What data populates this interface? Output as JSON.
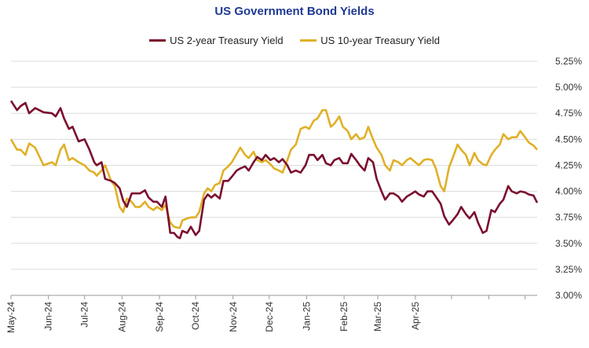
{
  "chart_data": {
    "type": "line",
    "title": "US Government Bond Yields",
    "xlabel": "",
    "ylabel": "",
    "x_ticks": [
      "May-24",
      "Jun-24",
      "Jul-24",
      "Aug-24",
      "Sep-24",
      "Oct-24",
      "Nov-24",
      "Dec-24",
      "Jan-25",
      "Feb-25",
      "Mar-25",
      "Apr-25"
    ],
    "ylim": [
      3.0,
      5.25
    ],
    "y_ticks": [
      3.0,
      3.25,
      3.5,
      3.75,
      4.0,
      4.25,
      4.5,
      4.75,
      5.0,
      5.25
    ],
    "y_tick_labels": [
      "3.00%",
      "3.25%",
      "3.50%",
      "3.75%",
      "4.00%",
      "4.25%",
      "4.50%",
      "4.75%",
      "5.00%",
      "5.25%"
    ],
    "grid": true,
    "legend_position": "top",
    "series": [
      {
        "name": "US 2-year Treasury Yield",
        "color": "#7a0f2e",
        "points": [
          [
            "2024-05-01",
            4.87
          ],
          [
            "2024-05-06",
            4.78
          ],
          [
            "2024-05-09",
            4.82
          ],
          [
            "2024-05-13",
            4.85
          ],
          [
            "2024-05-16",
            4.75
          ],
          [
            "2024-05-21",
            4.8
          ],
          [
            "2024-05-28",
            4.76
          ],
          [
            "2024-06-04",
            4.75
          ],
          [
            "2024-06-07",
            4.72
          ],
          [
            "2024-06-11",
            4.8
          ],
          [
            "2024-06-14",
            4.7
          ],
          [
            "2024-06-18",
            4.6
          ],
          [
            "2024-06-21",
            4.62
          ],
          [
            "2024-06-26",
            4.48
          ],
          [
            "2024-07-01",
            4.5
          ],
          [
            "2024-07-05",
            4.4
          ],
          [
            "2024-07-09",
            4.28
          ],
          [
            "2024-07-11",
            4.25
          ],
          [
            "2024-07-15",
            4.28
          ],
          [
            "2024-07-18",
            4.12
          ],
          [
            "2024-07-23",
            4.1
          ],
          [
            "2024-07-26",
            4.08
          ],
          [
            "2024-07-30",
            4.03
          ],
          [
            "2024-08-02",
            3.91
          ],
          [
            "2024-08-05",
            3.85
          ],
          [
            "2024-08-09",
            3.98
          ],
          [
            "2024-08-12",
            3.98
          ],
          [
            "2024-08-16",
            3.98
          ],
          [
            "2024-08-20",
            4.01
          ],
          [
            "2024-08-23",
            3.94
          ],
          [
            "2024-08-27",
            3.9
          ],
          [
            "2024-08-30",
            3.9
          ],
          [
            "2024-09-03",
            3.85
          ],
          [
            "2024-09-06",
            3.95
          ],
          [
            "2024-09-10",
            3.6
          ],
          [
            "2024-09-13",
            3.6
          ],
          [
            "2024-09-16",
            3.56
          ],
          [
            "2024-09-18",
            3.55
          ],
          [
            "2024-09-20",
            3.62
          ],
          [
            "2024-09-24",
            3.6
          ],
          [
            "2024-09-27",
            3.66
          ],
          [
            "2024-10-01",
            3.58
          ],
          [
            "2024-10-04",
            3.62
          ],
          [
            "2024-10-08",
            3.92
          ],
          [
            "2024-10-11",
            3.97
          ],
          [
            "2024-10-14",
            3.94
          ],
          [
            "2024-10-17",
            3.97
          ],
          [
            "2024-10-21",
            3.93
          ],
          [
            "2024-10-24",
            4.1
          ],
          [
            "2024-10-28",
            4.1
          ],
          [
            "2024-10-31",
            4.14
          ],
          [
            "2024-11-04",
            4.2
          ],
          [
            "2024-11-07",
            4.22
          ],
          [
            "2024-11-11",
            4.24
          ],
          [
            "2024-11-14",
            4.2
          ],
          [
            "2024-11-18",
            4.28
          ],
          [
            "2024-11-21",
            4.33
          ],
          [
            "2024-11-25",
            4.3
          ],
          [
            "2024-11-28",
            4.35
          ],
          [
            "2024-12-02",
            4.3
          ],
          [
            "2024-12-05",
            4.32
          ],
          [
            "2024-12-09",
            4.28
          ],
          [
            "2024-12-12",
            4.31
          ],
          [
            "2024-12-16",
            4.25
          ],
          [
            "2024-12-19",
            4.18
          ],
          [
            "2024-12-23",
            4.2
          ],
          [
            "2024-12-27",
            4.18
          ],
          [
            "2024-12-31",
            4.25
          ],
          [
            "2025-01-03",
            4.35
          ],
          [
            "2025-01-07",
            4.35
          ],
          [
            "2025-01-10",
            4.3
          ],
          [
            "2025-01-14",
            4.35
          ],
          [
            "2025-01-17",
            4.27
          ],
          [
            "2025-01-21",
            4.25
          ],
          [
            "2025-01-24",
            4.3
          ],
          [
            "2025-01-28",
            4.32
          ],
          [
            "2025-01-31",
            4.27
          ],
          [
            "2025-02-04",
            4.27
          ],
          [
            "2025-02-07",
            4.36
          ],
          [
            "2025-02-11",
            4.3
          ],
          [
            "2025-02-14",
            4.25
          ],
          [
            "2025-02-18",
            4.2
          ],
          [
            "2025-02-21",
            4.32
          ],
          [
            "2025-02-25",
            4.28
          ],
          [
            "2025-02-28",
            4.12
          ],
          [
            "2025-03-04",
            4.0
          ],
          [
            "2025-03-07",
            3.92
          ],
          [
            "2025-03-11",
            3.98
          ],
          [
            "2025-03-14",
            3.98
          ],
          [
            "2025-03-18",
            3.95
          ],
          [
            "2025-03-21",
            3.9
          ],
          [
            "2025-03-25",
            3.95
          ],
          [
            "2025-03-28",
            3.97
          ],
          [
            "2025-04-01",
            4.0
          ],
          [
            "2025-04-04",
            3.97
          ],
          [
            "2025-04-08",
            3.95
          ],
          [
            "2025-04-11",
            4.0
          ],
          [
            "2025-04-15",
            4.0
          ],
          [
            "2025-04-18",
            3.95
          ],
          [
            "2025-04-22",
            3.88
          ],
          [
            "2025-04-25",
            3.76
          ],
          [
            "2025-04-29",
            3.68
          ],
          [
            "2025-05-02",
            3.72
          ],
          [
            "2025-05-06",
            3.78
          ],
          [
            "2025-05-09",
            3.85
          ],
          [
            "2025-05-13",
            3.78
          ],
          [
            "2025-05-16",
            3.74
          ],
          [
            "2025-05-20",
            3.8
          ],
          [
            "2025-05-23",
            3.7
          ],
          [
            "2025-05-27",
            3.6
          ],
          [
            "2025-05-30",
            3.62
          ],
          [
            "2025-06-03",
            3.82
          ],
          [
            "2025-06-06",
            3.8
          ],
          [
            "2025-06-10",
            3.88
          ],
          [
            "2025-06-13",
            3.92
          ],
          [
            "2025-06-17",
            4.05
          ],
          [
            "2025-06-20",
            4.0
          ],
          [
            "2025-06-24",
            3.98
          ],
          [
            "2025-06-27",
            4.0
          ],
          [
            "2025-07-01",
            3.99
          ],
          [
            "2025-07-04",
            3.97
          ],
          [
            "2025-07-08",
            3.96
          ],
          [
            "2025-07-11",
            3.89
          ]
        ]
      },
      {
        "name": "US 10-year Treasury Yield",
        "color": "#e0b027",
        "points": [
          [
            "2024-05-01",
            4.5
          ],
          [
            "2024-05-06",
            4.4
          ],
          [
            "2024-05-09",
            4.4
          ],
          [
            "2024-05-13",
            4.35
          ],
          [
            "2024-05-16",
            4.46
          ],
          [
            "2024-05-21",
            4.42
          ],
          [
            "2024-05-28",
            4.25
          ],
          [
            "2024-06-04",
            4.28
          ],
          [
            "2024-06-07",
            4.25
          ],
          [
            "2024-06-11",
            4.4
          ],
          [
            "2024-06-14",
            4.45
          ],
          [
            "2024-06-18",
            4.3
          ],
          [
            "2024-06-21",
            4.32
          ],
          [
            "2024-06-26",
            4.28
          ],
          [
            "2024-07-01",
            4.25
          ],
          [
            "2024-07-05",
            4.2
          ],
          [
            "2024-07-09",
            4.18
          ],
          [
            "2024-07-11",
            4.15
          ],
          [
            "2024-07-15",
            4.2
          ],
          [
            "2024-07-18",
            4.25
          ],
          [
            "2024-07-23",
            4.1
          ],
          [
            "2024-07-26",
            4.05
          ],
          [
            "2024-07-30",
            3.85
          ],
          [
            "2024-08-02",
            3.8
          ],
          [
            "2024-08-05",
            3.93
          ],
          [
            "2024-08-09",
            3.9
          ],
          [
            "2024-08-12",
            3.85
          ],
          [
            "2024-08-16",
            3.85
          ],
          [
            "2024-08-20",
            3.9
          ],
          [
            "2024-08-23",
            3.85
          ],
          [
            "2024-08-27",
            3.82
          ],
          [
            "2024-08-30",
            3.85
          ],
          [
            "2024-09-03",
            3.82
          ],
          [
            "2024-09-06",
            3.87
          ],
          [
            "2024-09-10",
            3.7
          ],
          [
            "2024-09-13",
            3.66
          ],
          [
            "2024-09-16",
            3.65
          ],
          [
            "2024-09-18",
            3.65
          ],
          [
            "2024-09-20",
            3.72
          ],
          [
            "2024-09-24",
            3.74
          ],
          [
            "2024-09-27",
            3.75
          ],
          [
            "2024-10-01",
            3.75
          ],
          [
            "2024-10-04",
            3.8
          ],
          [
            "2024-10-08",
            3.98
          ],
          [
            "2024-10-11",
            4.03
          ],
          [
            "2024-10-14",
            4.0
          ],
          [
            "2024-10-17",
            4.06
          ],
          [
            "2024-10-21",
            4.08
          ],
          [
            "2024-10-24",
            4.2
          ],
          [
            "2024-10-28",
            4.24
          ],
          [
            "2024-10-31",
            4.28
          ],
          [
            "2024-11-04",
            4.36
          ],
          [
            "2024-11-07",
            4.42
          ],
          [
            "2024-11-11",
            4.35
          ],
          [
            "2024-11-14",
            4.32
          ],
          [
            "2024-11-18",
            4.38
          ],
          [
            "2024-11-21",
            4.3
          ],
          [
            "2024-11-25",
            4.28
          ],
          [
            "2024-11-28",
            4.3
          ],
          [
            "2024-12-02",
            4.26
          ],
          [
            "2024-12-05",
            4.22
          ],
          [
            "2024-12-09",
            4.2
          ],
          [
            "2024-12-12",
            4.18
          ],
          [
            "2024-12-16",
            4.3
          ],
          [
            "2024-12-19",
            4.4
          ],
          [
            "2024-12-23",
            4.45
          ],
          [
            "2024-12-27",
            4.6
          ],
          [
            "2024-12-31",
            4.62
          ],
          [
            "2025-01-03",
            4.6
          ],
          [
            "2025-01-07",
            4.68
          ],
          [
            "2025-01-10",
            4.7
          ],
          [
            "2025-01-14",
            4.78
          ],
          [
            "2025-01-17",
            4.78
          ],
          [
            "2025-01-21",
            4.62
          ],
          [
            "2025-01-24",
            4.65
          ],
          [
            "2025-01-28",
            4.72
          ],
          [
            "2025-01-31",
            4.62
          ],
          [
            "2025-02-04",
            4.58
          ],
          [
            "2025-02-07",
            4.5
          ],
          [
            "2025-02-11",
            4.55
          ],
          [
            "2025-02-14",
            4.5
          ],
          [
            "2025-02-18",
            4.52
          ],
          [
            "2025-02-21",
            4.62
          ],
          [
            "2025-02-25",
            4.5
          ],
          [
            "2025-02-28",
            4.42
          ],
          [
            "2025-03-04",
            4.35
          ],
          [
            "2025-03-07",
            4.25
          ],
          [
            "2025-03-11",
            4.2
          ],
          [
            "2025-03-14",
            4.3
          ],
          [
            "2025-03-18",
            4.28
          ],
          [
            "2025-03-21",
            4.25
          ],
          [
            "2025-03-25",
            4.3
          ],
          [
            "2025-03-28",
            4.32
          ],
          [
            "2025-04-01",
            4.28
          ],
          [
            "2025-04-04",
            4.25
          ],
          [
            "2025-04-08",
            4.3
          ],
          [
            "2025-04-11",
            4.31
          ],
          [
            "2025-04-15",
            4.3
          ],
          [
            "2025-04-18",
            4.22
          ],
          [
            "2025-04-22",
            4.05
          ],
          [
            "2025-04-25",
            4.0
          ],
          [
            "2025-04-29",
            4.23
          ],
          [
            "2025-05-02",
            4.32
          ],
          [
            "2025-05-06",
            4.45
          ],
          [
            "2025-05-09",
            4.4
          ],
          [
            "2025-05-13",
            4.35
          ],
          [
            "2025-05-16",
            4.25
          ],
          [
            "2025-05-20",
            4.37
          ],
          [
            "2025-05-23",
            4.3
          ],
          [
            "2025-05-27",
            4.26
          ],
          [
            "2025-05-30",
            4.25
          ],
          [
            "2025-06-03",
            4.35
          ],
          [
            "2025-06-06",
            4.4
          ],
          [
            "2025-06-10",
            4.45
          ],
          [
            "2025-06-13",
            4.55
          ],
          [
            "2025-06-17",
            4.5
          ],
          [
            "2025-06-20",
            4.52
          ],
          [
            "2025-06-24",
            4.52
          ],
          [
            "2025-06-27",
            4.58
          ],
          [
            "2025-07-01",
            4.52
          ],
          [
            "2025-07-04",
            4.47
          ],
          [
            "2025-07-08",
            4.44
          ],
          [
            "2025-07-11",
            4.4
          ]
        ]
      }
    ]
  }
}
